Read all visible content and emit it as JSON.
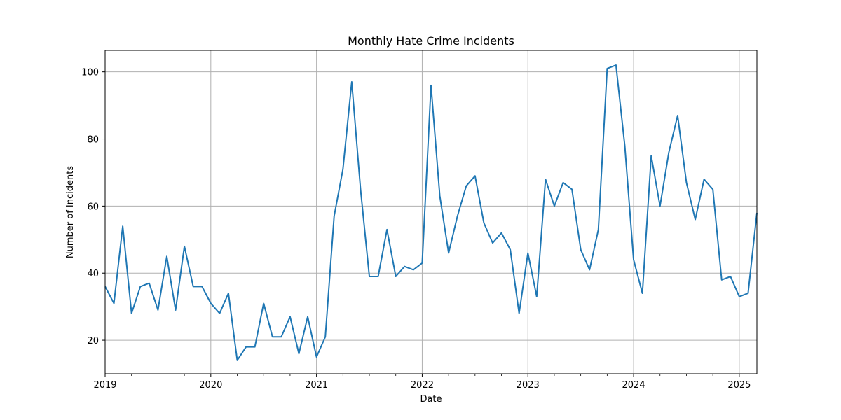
{
  "chart_data": {
    "type": "line",
    "title": "Monthly Hate Crime Incidents",
    "xlabel": "Date",
    "ylabel": "Number of Incidents",
    "x_start": "2019-01",
    "x_end": "2025-03",
    "xlim": [
      "2019-01",
      "2025-03"
    ],
    "ylim": [
      10,
      106.4
    ],
    "x_ticks": [
      {
        "date": "2019-01",
        "label": "2019"
      },
      {
        "date": "2020-01",
        "label": "2020"
      },
      {
        "date": "2021-01",
        "label": "2021"
      },
      {
        "date": "2022-01",
        "label": "2022"
      },
      {
        "date": "2023-01",
        "label": "2023"
      },
      {
        "date": "2024-01",
        "label": "2024"
      },
      {
        "date": "2025-01",
        "label": "2025"
      }
    ],
    "y_ticks": [
      20,
      40,
      60,
      80,
      100
    ],
    "grid": true,
    "line_color": "#1f77b4",
    "series": [
      {
        "x": [
          "2019-01",
          "2019-02",
          "2019-03",
          "2019-04",
          "2019-05",
          "2019-06",
          "2019-07",
          "2019-08",
          "2019-09",
          "2019-10",
          "2019-11",
          "2019-12",
          "2020-01",
          "2020-02",
          "2020-03",
          "2020-04",
          "2020-05",
          "2020-06",
          "2020-07",
          "2020-08",
          "2020-09",
          "2020-10",
          "2020-11",
          "2020-12",
          "2021-01",
          "2021-02",
          "2021-03",
          "2021-04",
          "2021-05",
          "2021-06",
          "2021-07",
          "2021-08",
          "2021-09",
          "2021-10",
          "2021-11",
          "2021-12",
          "2022-01",
          "2022-02",
          "2022-03",
          "2022-04",
          "2022-05",
          "2022-06",
          "2022-07",
          "2022-08",
          "2022-09",
          "2022-10",
          "2022-11",
          "2022-12",
          "2023-01",
          "2023-02",
          "2023-03",
          "2023-04",
          "2023-05",
          "2023-06",
          "2023-07",
          "2023-08",
          "2023-09",
          "2023-10",
          "2023-11",
          "2023-12",
          "2024-01",
          "2024-02",
          "2024-03",
          "2024-04",
          "2024-05",
          "2024-06",
          "2024-07",
          "2024-08",
          "2024-09",
          "2024-10",
          "2024-11",
          "2024-12",
          "2025-01",
          "2025-02",
          "2025-03"
        ],
        "values": [
          36,
          31,
          54,
          28,
          36,
          37,
          29,
          45,
          29,
          48,
          36,
          36,
          31,
          28,
          34,
          14,
          18,
          18,
          31,
          21,
          21,
          27,
          16,
          27,
          15,
          21,
          57,
          71,
          97,
          65,
          39,
          39,
          53,
          39,
          42,
          41,
          43,
          96,
          63,
          46,
          57,
          66,
          69,
          55,
          49,
          52,
          47,
          28,
          46,
          33,
          68,
          60,
          67,
          65,
          47,
          41,
          53,
          101,
          102,
          78,
          44,
          34,
          75,
          60,
          76,
          87,
          67,
          56,
          68,
          65,
          38,
          39,
          33,
          34,
          58
        ]
      }
    ]
  }
}
